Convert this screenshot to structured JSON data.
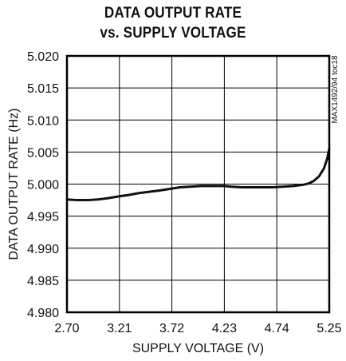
{
  "chart_data": {
    "type": "line",
    "title_lines": [
      "DATA OUTPUT RATE",
      "vs. SUPPLY VOLTAGE"
    ],
    "xlabel": "SUPPLY VOLTAGE (V)",
    "ylabel": "DATA OUTPUT RATE (Hz)",
    "side_label": "MAX1492/94 toc18",
    "xlim": [
      2.7,
      5.25
    ],
    "ylim": [
      4.98,
      5.02
    ],
    "x_ticks": [
      "2.70",
      "3.21",
      "3.72",
      "4.23",
      "4.74",
      "5.25"
    ],
    "y_ticks": [
      "5.020",
      "5.015",
      "5.010",
      "5.005",
      "5.000",
      "4.995",
      "4.990",
      "4.985",
      "4.980"
    ],
    "grid": true,
    "series": [
      {
        "x": [
          2.7,
          2.8,
          2.9,
          3.0,
          3.1,
          3.21,
          3.3,
          3.4,
          3.5,
          3.6,
          3.72,
          3.8,
          3.9,
          4.0,
          4.1,
          4.23,
          4.3,
          4.4,
          4.5,
          4.6,
          4.7,
          4.8,
          4.9,
          5.0,
          5.05,
          5.1,
          5.15,
          5.2,
          5.23,
          5.25
        ],
        "y": [
          4.9976,
          4.9975,
          4.9975,
          4.9976,
          4.9978,
          4.9981,
          4.9983,
          4.9986,
          4.9988,
          4.999,
          4.9993,
          4.9995,
          4.9996,
          4.9997,
          4.9997,
          4.9997,
          4.9996,
          4.9995,
          4.9995,
          4.9995,
          4.9995,
          4.9996,
          4.9997,
          4.9999,
          5.0001,
          5.0005,
          5.0012,
          5.0025,
          5.004,
          5.0055
        ]
      }
    ]
  }
}
